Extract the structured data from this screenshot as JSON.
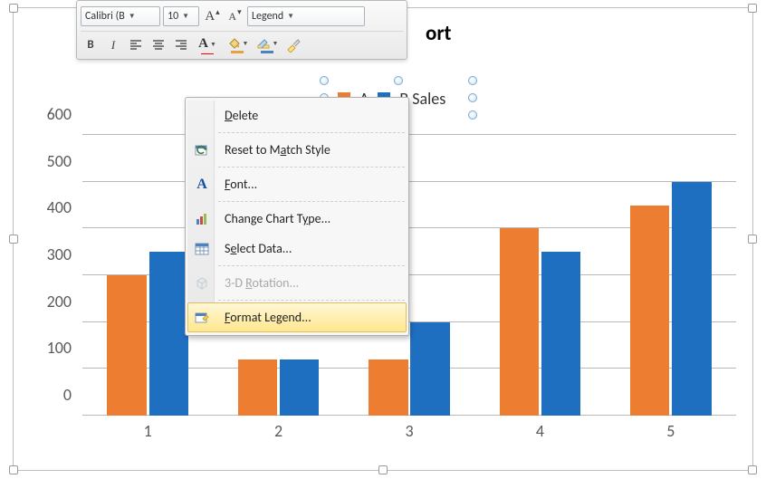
{
  "toolbar": {
    "font_name": "Calibri (B",
    "font_size": "10",
    "style_selector": "Legend",
    "bold_label": "B",
    "italic_label": "I",
    "font_color_underline": "#ff0000",
    "fill_underline": "#e8a23d",
    "highlight_underline": "#4f81bd"
  },
  "chart_title_fragment": "ort",
  "legend": {
    "items": [
      {
        "label": "A",
        "color": "#ed7d31"
      },
      {
        "label": "B Sales",
        "color": "#1f6fc1"
      }
    ]
  },
  "chart": {
    "type": "bar",
    "categories": [
      "1",
      "2",
      "3",
      "4",
      "5"
    ],
    "ylim": [
      0,
      600
    ],
    "ytick_step": 100,
    "series": [
      {
        "name": "A",
        "color": "#ed7d31",
        "values": [
          300,
          120,
          120,
          400,
          450
        ]
      },
      {
        "name": "B",
        "color": "#1f6fc1",
        "values": [
          350,
          120,
          200,
          350,
          500
        ]
      }
    ],
    "bar_width_ratio": 0.3,
    "bar_gap_ratio": 0.02,
    "grid_color": "#b9b9b9",
    "label_fontsize": 18,
    "label_color": "#595959",
    "background_color": "#ffffff"
  },
  "context_menu": {
    "items": [
      {
        "key": "delete",
        "label_pre": "",
        "mn": "D",
        "label_post": "elete",
        "icon": "none",
        "enabled": true
      },
      {
        "key": "reset",
        "label_pre": "Reset to M",
        "mn": "a",
        "label_post": "tch Style",
        "icon": "reset",
        "enabled": true
      },
      {
        "key": "font",
        "label_pre": "",
        "mn": "F",
        "label_post": "ont...",
        "icon": "font",
        "enabled": true
      },
      {
        "key": "chart-type",
        "label_pre": "Change Chart T",
        "mn": "y",
        "label_post": "pe...",
        "icon": "chart",
        "enabled": true
      },
      {
        "key": "select-data",
        "label_pre": "S",
        "mn": "e",
        "label_post": "lect Data...",
        "icon": "table",
        "enabled": true
      },
      {
        "key": "rotation",
        "label_pre": "3-D ",
        "mn": "R",
        "label_post": "otation...",
        "icon": "cube",
        "enabled": false
      },
      {
        "key": "format-legend",
        "label_pre": "",
        "mn": "F",
        "label_post": "ormat Legend...",
        "icon": "format",
        "enabled": true,
        "hover": true
      }
    ],
    "separators_after": [
      0,
      1,
      2,
      4,
      5
    ]
  }
}
